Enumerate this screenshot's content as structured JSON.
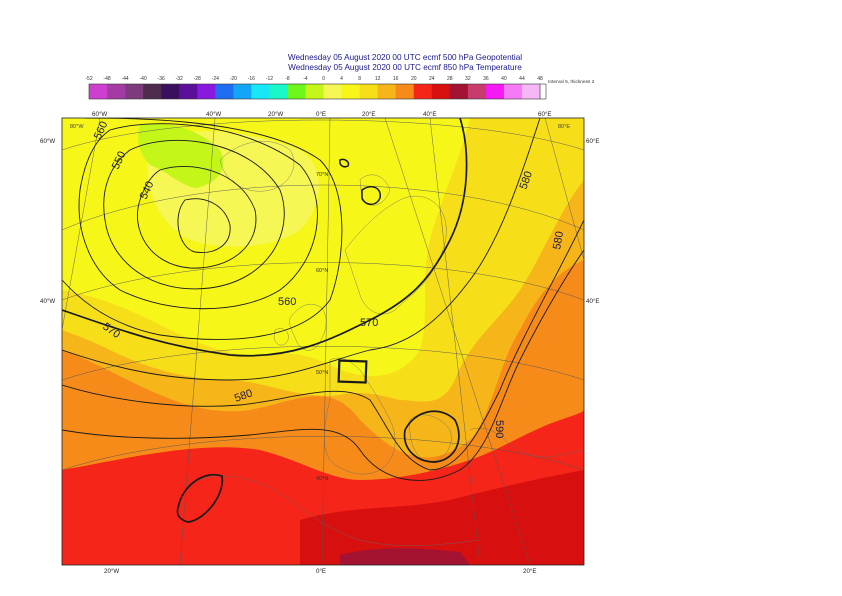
{
  "titles": {
    "line1": "Wednesday 05 August 2020 00 UTC ecmf 500 hPa  Geopotential",
    "line2": "Wednesday 05 August 2020 00 UTC ecmf 850 hPa  Temperature"
  },
  "legend": {
    "note": "Interval 5, thickness 2",
    "ticks": [
      "-52",
      "-48",
      "-44",
      "-40",
      "-36",
      "-32",
      "-28",
      "-24",
      "-20",
      "-16",
      "-12",
      "-8",
      "-4",
      "0",
      "4",
      "8",
      "12",
      "16",
      "20",
      "24",
      "28",
      "32",
      "36",
      "40",
      "44",
      "48"
    ],
    "colors": [
      "#cf3fcf",
      "#a43aa4",
      "#7d3a7d",
      "#4d2c4d",
      "#3a0f5e",
      "#5c109a",
      "#8a19e0",
      "#1e6cf0",
      "#12a7f6",
      "#19e6f6",
      "#19f6c7",
      "#6df619",
      "#c4f619",
      "#f6f655",
      "#f6f619",
      "#f6de19",
      "#f6b519",
      "#f68b19",
      "#f62519",
      "#d80f0f",
      "#a31331",
      "#c83b6d",
      "#f619f6",
      "#f67af6",
      "#f6b7f6"
    ]
  },
  "map": {
    "top_lon_labels": [
      "60°W",
      "40°W",
      "20°W",
      "0°E",
      "20°E",
      "40°E",
      "60°E"
    ],
    "bottom_lon_labels": [
      "20°W",
      "0°E",
      "20°E"
    ],
    "left_lat_labels": [
      "60°W",
      "40°W"
    ],
    "right_lat_labels": [
      "60°E",
      "40°E"
    ],
    "corner_labels": [
      "80°W",
      "80°E"
    ],
    "inner_lat_labels": [
      "70°N",
      "60°N",
      "50°N",
      "40°N"
    ],
    "contour_labels": [
      "560",
      "550",
      "540",
      "560",
      "570",
      "570",
      "580",
      "580",
      "580",
      "590"
    ]
  }
}
